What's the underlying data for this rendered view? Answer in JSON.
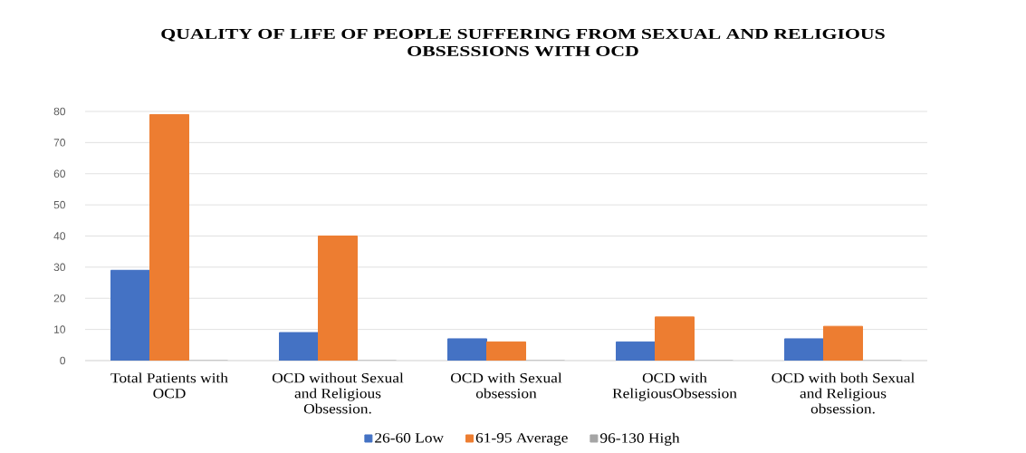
{
  "chart_data": {
    "type": "bar",
    "title": "QUALITY OF LIFE OF PEOPLE SUFFERING FROM SEXUAL AND RELIGIOUS OBSESSIONS WITH OCD",
    "categories": [
      "Total Patients with OCD",
      "OCD without Sexual and Religious Obsession.",
      "OCD with Sexual obsession",
      "OCD with ReligiousObsession",
      "OCD with both Sexual and Religious obsession."
    ],
    "series": [
      {
        "name": "26-60 Low",
        "color": "#4472c4",
        "values": [
          29,
          9,
          7,
          6,
          7
        ]
      },
      {
        "name": "61-95 Average",
        "color": "#ed7d31",
        "values": [
          79,
          40,
          6,
          14,
          11
        ]
      },
      {
        "name": "96-130 High",
        "color": "#a5a5a5",
        "values": [
          0,
          0,
          0,
          0,
          0
        ]
      }
    ],
    "ylim": [
      0,
      80
    ],
    "yticks": [
      0,
      10,
      20,
      30,
      40,
      50,
      60,
      70,
      80
    ],
    "grid": "y",
    "legend": "bottom"
  }
}
